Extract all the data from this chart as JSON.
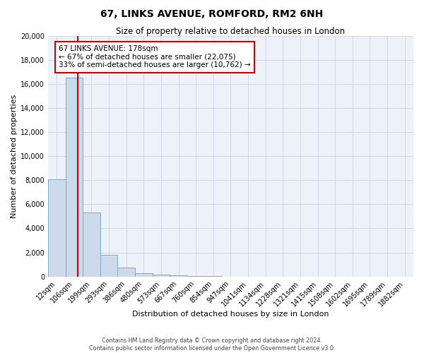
{
  "title_line1": "67, LINKS AVENUE, ROMFORD, RM2 6NH",
  "title_line2": "Size of property relative to detached houses in London",
  "xlabel": "Distribution of detached houses by size in London",
  "ylabel": "Number of detached properties",
  "bar_labels": [
    "12sqm",
    "106sqm",
    "199sqm",
    "293sqm",
    "386sqm",
    "480sqm",
    "573sqm",
    "667sqm",
    "760sqm",
    "854sqm",
    "947sqm",
    "1041sqm",
    "1134sqm",
    "1228sqm",
    "1321sqm",
    "1415sqm",
    "1508sqm",
    "1602sqm",
    "1695sqm",
    "1789sqm",
    "1882sqm"
  ],
  "bar_heights": [
    8100,
    16500,
    5300,
    1800,
    750,
    300,
    150,
    100,
    50,
    30,
    0,
    0,
    0,
    0,
    0,
    0,
    0,
    0,
    0,
    0,
    0
  ],
  "bar_color": "#ccdaeb",
  "bar_edge_color": "#7aaac8",
  "ylim": [
    0,
    20000
  ],
  "yticks": [
    0,
    2000,
    4000,
    6000,
    8000,
    10000,
    12000,
    14000,
    16000,
    18000,
    20000
  ],
  "vline_color": "#cc0000",
  "annotation_title": "67 LINKS AVENUE: 178sqm",
  "annotation_line1": "← 67% of detached houses are smaller (22,075)",
  "annotation_line2": "33% of semi-detached houses are larger (10,762) →",
  "footer_line1": "Contains HM Land Registry data © Crown copyright and database right 2024.",
  "footer_line2": "Contains public sector information licensed under the Open Government Licence v3.0.",
  "grid_color": "#c8d4e4",
  "background_color": "#edf2f9",
  "title1_fontsize": 10,
  "title2_fontsize": 8.5,
  "axis_label_fontsize": 8,
  "tick_fontsize": 7
}
